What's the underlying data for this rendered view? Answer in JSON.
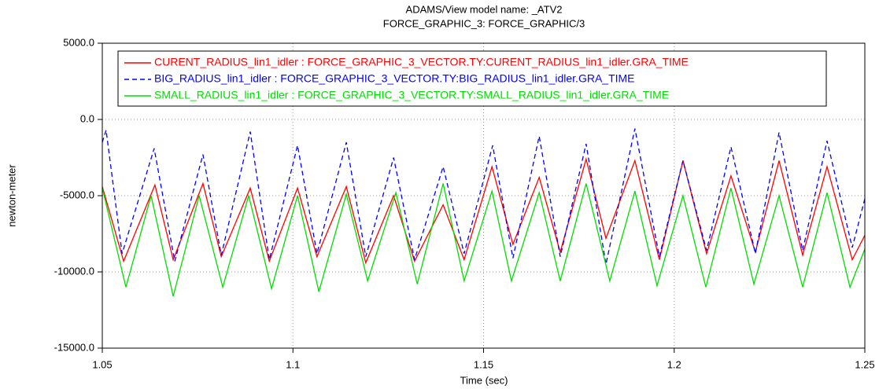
{
  "chart_data": {
    "type": "line",
    "title": "ADAMS/View model name: _ATV2",
    "subtitle": "FORCE_GRAPHIC_3: FORCE_GRAPHIC/3",
    "x_label": "Time (sec)",
    "y_label": "newton-meter",
    "xlim": [
      1.05,
      1.25
    ],
    "xticks": [
      1.05,
      1.1,
      1.15,
      1.2,
      1.25
    ],
    "ylim": [
      -15000,
      5000
    ],
    "yticks": [
      {
        "value": -15000,
        "label": "-15000.0"
      },
      {
        "value": -10000,
        "label": "-10000.0"
      },
      {
        "value": -5000,
        "label": "-5000.0"
      },
      {
        "value": 0,
        "label": "0.0"
      },
      {
        "value": 5000,
        "label": "5000.0"
      }
    ],
    "grid": true,
    "series": [
      {
        "name": "CURENT_RADIUS_lin1_idler : FORCE_GRAPHIC_3_VECTOR.TY:CURENT_RADIUS_lin1_idler.GRA_TIME",
        "color": "#ff0000",
        "line_style": "solid",
        "x": [
          1.05,
          1.0556,
          1.0638,
          1.0686,
          1.0764,
          1.0812,
          1.0888,
          1.0938,
          1.1012,
          1.1063,
          1.114,
          1.1191,
          1.1264,
          1.1319,
          1.1394,
          1.1449,
          1.1522,
          1.1577,
          1.1646,
          1.1701,
          1.1769,
          1.1821,
          1.1897,
          1.1961,
          1.2023,
          1.2085,
          1.2149,
          1.2213,
          1.2275,
          1.2337,
          1.2401,
          1.2467,
          1.25
        ],
        "values": [
          -4400,
          -9300,
          -4300,
          -9200,
          -4200,
          -9000,
          -4500,
          -9300,
          -4500,
          -9000,
          -4400,
          -9400,
          -5000,
          -9300,
          -5600,
          -9200,
          -3100,
          -8200,
          -3800,
          -8700,
          -2600,
          -7800,
          -2700,
          -9200,
          -2700,
          -8800,
          -3700,
          -8700,
          -2700,
          -8900,
          -3100,
          -9200,
          -7600
        ]
      },
      {
        "name": "BIG_RADIUS_lin1_idler : FORCE_GRAPHIC_3_VECTOR.TY:BIG_RADIUS_lin1_idler.GRA_TIME",
        "color": "#0000ff",
        "line_style": "dashed",
        "x": [
          1.05,
          1.051,
          1.0552,
          1.0636,
          1.069,
          1.0764,
          1.0812,
          1.0888,
          1.0938,
          1.1012,
          1.1063,
          1.114,
          1.1191,
          1.1264,
          1.1319,
          1.1394,
          1.1449,
          1.1524,
          1.1577,
          1.1646,
          1.1701,
          1.1769,
          1.1821,
          1.1897,
          1.1961,
          1.2023,
          1.2085,
          1.2149,
          1.2213,
          1.2275,
          1.2337,
          1.2401,
          1.2467,
          1.25
        ],
        "values": [
          -1500,
          -700,
          -8800,
          -1900,
          -9300,
          -2300,
          -8900,
          -800,
          -9200,
          -1700,
          -8800,
          -1500,
          -9000,
          -2500,
          -9200,
          -3100,
          -8800,
          -1700,
          -9100,
          -1100,
          -9000,
          -1600,
          -9500,
          -600,
          -9000,
          -2700,
          -8600,
          -1800,
          -8800,
          -850,
          -8600,
          -1400,
          -8400,
          -5200
        ]
      },
      {
        "name": "SMALL_RADIUS_lin1_idler : FORCE_GRAPHIC_3_VECTOR.TY:SMALL_RADIUS_lin1_idler.GRA_TIME",
        "color": "#00dd00",
        "line_style": "solid",
        "x": [
          1.05,
          1.0562,
          1.0628,
          1.0686,
          1.0754,
          1.0816,
          1.0884,
          1.0944,
          1.1012,
          1.1068,
          1.114,
          1.1196,
          1.127,
          1.1326,
          1.1394,
          1.1449,
          1.1522,
          1.1573,
          1.1646,
          1.1701,
          1.1769,
          1.1831,
          1.1897,
          1.1955,
          1.2023,
          1.2083,
          1.2149,
          1.2209,
          1.2275,
          1.2337,
          1.2401,
          1.2461,
          1.25
        ],
        "values": [
          -4500,
          -11000,
          -5000,
          -11600,
          -5000,
          -11000,
          -5000,
          -11100,
          -5000,
          -11300,
          -4900,
          -10600,
          -4800,
          -10800,
          -4200,
          -10600,
          -4700,
          -10600,
          -4800,
          -10600,
          -4200,
          -10600,
          -4700,
          -10900,
          -5000,
          -11000,
          -4500,
          -10800,
          -5000,
          -11000,
          -4800,
          -11000,
          -8500
        ]
      }
    ]
  }
}
